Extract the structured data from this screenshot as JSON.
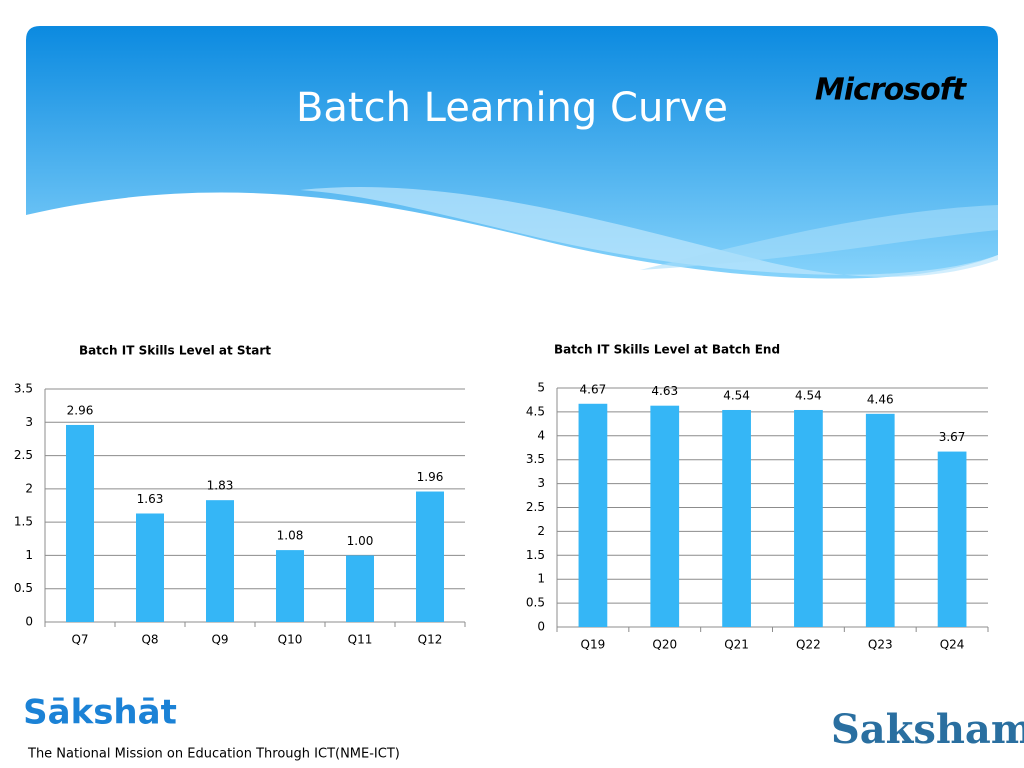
{
  "slide": {
    "title": "Batch Learning Curve",
    "brand": "Microsoft",
    "logo_left": "Sākshāt",
    "logo_right": "Saksham",
    "footer": "The National Mission on Education Through ICT(NME-ICT)"
  },
  "chart_data": [
    {
      "type": "bar",
      "title": "Batch IT Skills Level at Start",
      "categories": [
        "Q7",
        "Q8",
        "Q9",
        "Q10",
        "Q11",
        "Q12"
      ],
      "values": [
        2.96,
        1.63,
        1.83,
        1.08,
        1.0,
        1.96
      ],
      "value_labels": [
        "2.96",
        "1.63",
        "1.83",
        "1.08",
        "1.00",
        "1.96"
      ],
      "color": "#35b6f6",
      "ylim": [
        0,
        3.5
      ],
      "yticks": [
        0,
        0.5,
        1,
        1.5,
        2,
        2.5,
        3,
        3.5
      ],
      "grid": true
    },
    {
      "type": "bar",
      "title": "Batch IT Skills Level at Batch End",
      "categories": [
        "Q19",
        "Q20",
        "Q21",
        "Q22",
        "Q23",
        "Q24"
      ],
      "values": [
        4.67,
        4.63,
        4.54,
        4.54,
        4.46,
        3.67
      ],
      "color": "#35b6f6",
      "ylim": [
        0,
        5
      ],
      "yticks": [
        0,
        0.5,
        1,
        1.5,
        2,
        2.5,
        3,
        3.5,
        4,
        4.5,
        5
      ],
      "grid": true
    }
  ]
}
